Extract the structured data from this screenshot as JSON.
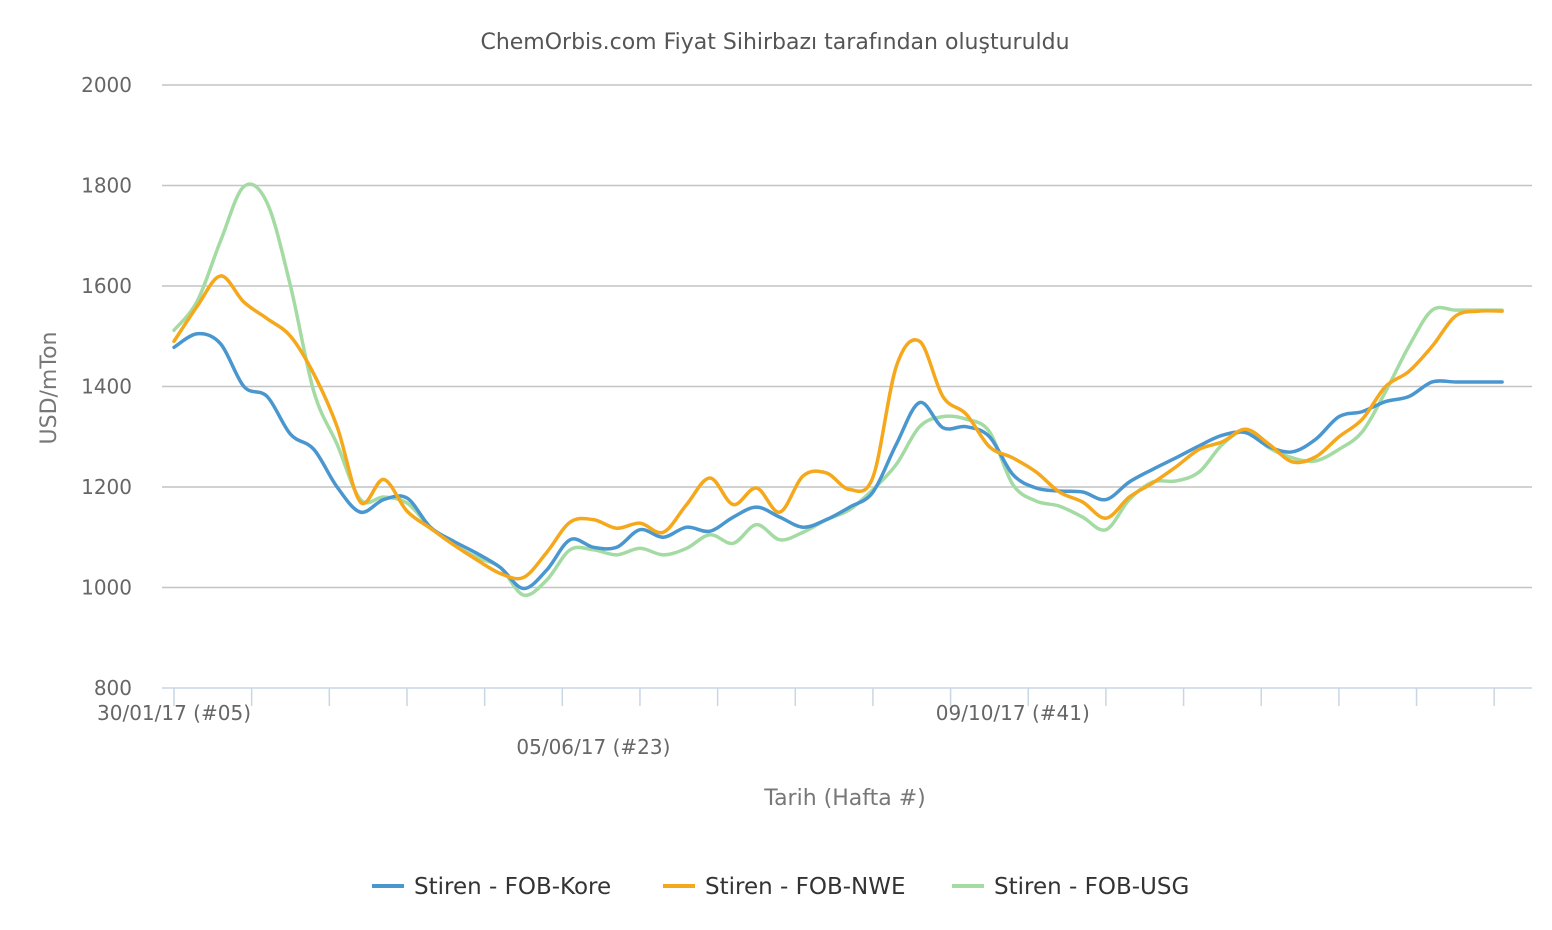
{
  "chart_data": {
    "type": "line",
    "title": "ChemOrbis.com Fiyat Sihirbazı tarafından oluşturuldu",
    "xlabel": "Tarih (Hafta #)",
    "ylabel": "USD/mTon",
    "ylim": [
      800,
      2000
    ],
    "yticks": [
      800,
      1000,
      1200,
      1400,
      1600,
      1800,
      2000
    ],
    "grid": true,
    "legend_position": "bottom",
    "x_tick_labels": [
      {
        "label": "30/01/17 (#05)",
        "week": 5
      },
      {
        "label": "05/06/17 (#23)",
        "week": 23
      },
      {
        "label": "09/10/17 (#41)",
        "week": 41
      }
    ],
    "x_range_weeks": [
      5,
      62.8
    ],
    "x": [
      5,
      6,
      7,
      8,
      9,
      10,
      11,
      12,
      13,
      14,
      15,
      16,
      17,
      18,
      19,
      20,
      21,
      22,
      23,
      24,
      25,
      26,
      27,
      28,
      29,
      30,
      31,
      32,
      33,
      34,
      35,
      36,
      37,
      38,
      39,
      40,
      41,
      42,
      43,
      44,
      45,
      46,
      47,
      48,
      49,
      50,
      51,
      52,
      53,
      54,
      55,
      56,
      57,
      58,
      59,
      60,
      61,
      62
    ],
    "series": [
      {
        "name": "Stiren - FOB-Kore",
        "color": "#4a97d0",
        "values": [
          1478,
          1505,
          1485,
          1400,
          1380,
          1305,
          1275,
          1200,
          1150,
          1175,
          1178,
          1120,
          1092,
          1068,
          1040,
          998,
          1035,
          1095,
          1080,
          1080,
          1115,
          1100,
          1120,
          1112,
          1140,
          1160,
          1140,
          1120,
          1135,
          1160,
          1190,
          1285,
          1368,
          1318,
          1320,
          1300,
          1225,
          1198,
          1192,
          1190,
          1175,
          1210,
          1235,
          1258,
          1282,
          1303,
          1308,
          1280,
          1270,
          1295,
          1340,
          1350,
          1370,
          1380,
          1409,
          1409,
          1409,
          1409
        ]
      },
      {
        "name": "Stiren - FOB-NWE",
        "color": "#f5a81c",
        "values": [
          1490,
          1560,
          1620,
          1568,
          1535,
          1500,
          1425,
          1320,
          1170,
          1215,
          1152,
          1118,
          1085,
          1055,
          1028,
          1020,
          1070,
          1130,
          1135,
          1118,
          1128,
          1110,
          1165,
          1218,
          1165,
          1198,
          1150,
          1222,
          1228,
          1195,
          1220,
          1440,
          1490,
          1380,
          1345,
          1280,
          1258,
          1230,
          1190,
          1170,
          1138,
          1180,
          1208,
          1240,
          1275,
          1290,
          1315,
          1285,
          1250,
          1260,
          1300,
          1335,
          1400,
          1430,
          1480,
          1540,
          1550,
          1550
        ]
      },
      {
        "name": "Stiren - FOB-USG",
        "color": "#a3dba3",
        "values": [
          1512,
          1570,
          1690,
          1798,
          1765,
          1600,
          1390,
          1285,
          1175,
          1180,
          1168,
          1120,
          1085,
          1060,
          1040,
          985,
          1015,
          1075,
          1075,
          1065,
          1078,
          1065,
          1078,
          1105,
          1088,
          1125,
          1095,
          1110,
          1135,
          1155,
          1195,
          1245,
          1320,
          1340,
          1335,
          1310,
          1205,
          1172,
          1162,
          1140,
          1115,
          1175,
          1210,
          1212,
          1230,
          1285,
          1312,
          1278,
          1258,
          1252,
          1275,
          1310,
          1390,
          1480,
          1552,
          1552,
          1552,
          1552
        ]
      }
    ]
  }
}
